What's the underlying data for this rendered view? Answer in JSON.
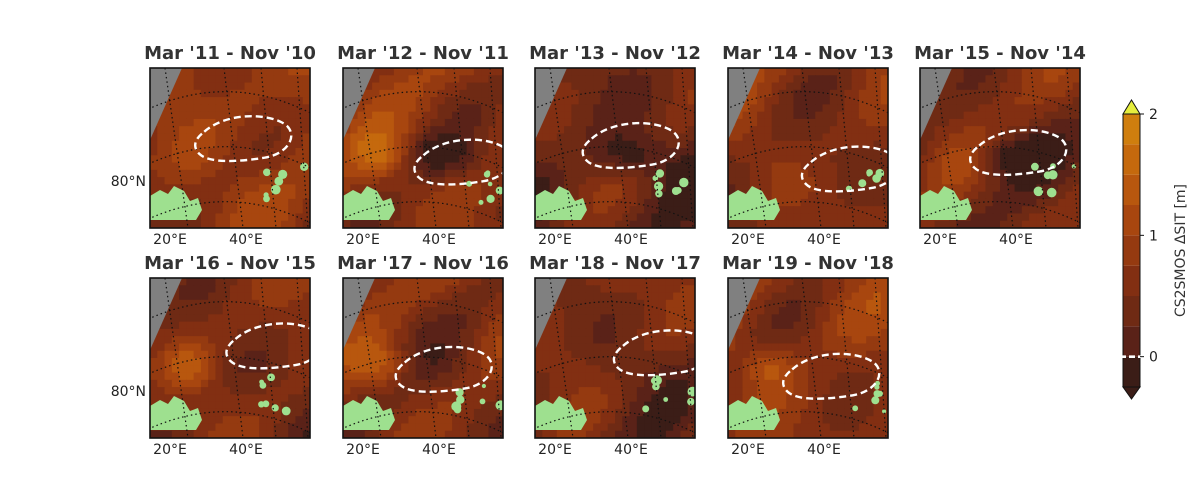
{
  "chart_data": {
    "type": "heatmap",
    "description_source": "Small-multiple polar-stereographic maps of sea-ice thickness change",
    "panels": [
      {
        "title": "Mar '11 - Nov '10",
        "xtick_labels": [
          "20°E",
          "40°E"
        ],
        "ytick_labels": [
          "80°N"
        ],
        "mean_level": 0.8
      },
      {
        "title": "Mar '12 - Nov '11",
        "xtick_labels": [
          "20°E",
          "40°E"
        ],
        "ytick_labels": [],
        "mean_level": 0.7
      },
      {
        "title": "Mar '13 - Nov '12",
        "xtick_labels": [
          "20°E",
          "40°E"
        ],
        "ytick_labels": [],
        "mean_level": 0.35
      },
      {
        "title": "Mar '14 - Nov '13",
        "xtick_labels": [
          "20°E",
          "40°E"
        ],
        "ytick_labels": [],
        "mean_level": 0.6
      },
      {
        "title": "Mar '15 - Nov '14",
        "xtick_labels": [
          "20°E",
          "40°E"
        ],
        "ytick_labels": [],
        "mean_level": 0.5
      },
      {
        "title": "Mar '16 - Nov '15",
        "xtick_labels": [
          "20°E",
          "40°E"
        ],
        "ytick_labels": [
          "80°N"
        ],
        "mean_level": 0.55
      },
      {
        "title": "Mar '17 - Nov '16",
        "xtick_labels": [
          "20°E",
          "40°E"
        ],
        "ytick_labels": [],
        "mean_level": 0.6
      },
      {
        "title": "Mar '18 - Nov '17",
        "xtick_labels": [
          "20°E",
          "40°E"
        ],
        "ytick_labels": [],
        "mean_level": 0.45
      },
      {
        "title": "Mar '19 - Nov '18",
        "xtick_labels": [
          "20°E",
          "40°E"
        ],
        "ytick_labels": [],
        "mean_level": 0.7
      }
    ],
    "colorbar": {
      "label": "CS2SMOS ΔSIT [m]",
      "range": [
        -0.25,
        2.0
      ],
      "step": 0.25,
      "ticks": [
        {
          "value": 0,
          "label": "0"
        },
        {
          "value": 1,
          "label": "1"
        },
        {
          "value": 2,
          "label": "2"
        }
      ],
      "extend": "both",
      "zero_contour_style": "white dashed",
      "colors": [
        "#3b1d17",
        "#5a2218",
        "#6f2a14",
        "#822f12",
        "#953a10",
        "#a8460f",
        "#b8570e",
        "#c5690d",
        "#cf7e0e",
        "#d6930f",
        "#dca814",
        "#e3bf1c",
        "#e9d427",
        "#e6ee3d"
      ]
    },
    "land_color": "#9ee08f",
    "nodata_color": "#808080"
  }
}
